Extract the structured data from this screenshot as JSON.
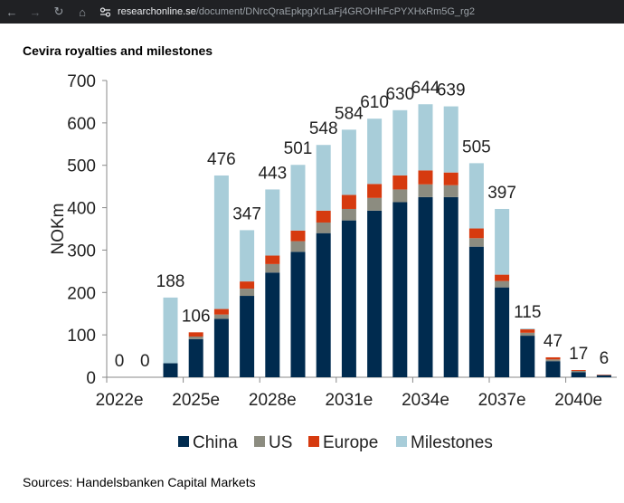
{
  "browser": {
    "url_domain": "researchonline.se",
    "url_path": "/document/DNrcQraEpkpgXrLaFj4GROHhFcPYXHxRm5G_rg2"
  },
  "page": {
    "title": "Cevira royalties and milestones",
    "source": "Sources: Handelsbanken Capital Markets"
  },
  "chart_data": {
    "type": "bar",
    "stacked": true,
    "ylabel": "NOKm",
    "ylim": [
      0,
      700
    ],
    "yticks": [
      0,
      100,
      200,
      300,
      400,
      500,
      600,
      700
    ],
    "categories": [
      "2022e",
      "2023e",
      "2024e",
      "2025e",
      "2026e",
      "2027e",
      "2028e",
      "2029e",
      "2030e",
      "2031e",
      "2032e",
      "2033e",
      "2034e",
      "2035e",
      "2036e",
      "2037e",
      "2038e",
      "2039e",
      "2040e",
      "2041e"
    ],
    "xtick_labels": [
      "2022e",
      "2025e",
      "2028e",
      "2031e",
      "2034e",
      "2037e",
      "2040e"
    ],
    "series": [
      {
        "name": "China",
        "color": "#002b4f",
        "values": [
          0,
          0,
          33,
          90,
          138,
          192,
          247,
          296,
          340,
          370,
          393,
          413,
          425,
          425,
          308,
          212,
          98,
          38,
          12,
          5
        ]
      },
      {
        "name": "US",
        "color": "#8c8c80",
        "values": [
          0,
          0,
          0,
          6,
          10,
          17,
          20,
          25,
          25,
          27,
          30,
          30,
          30,
          28,
          20,
          15,
          7,
          4,
          3,
          0
        ]
      },
      {
        "name": "Europe",
        "color": "#d63a0f",
        "values": [
          0,
          0,
          0,
          10,
          13,
          17,
          20,
          25,
          28,
          33,
          33,
          33,
          33,
          30,
          23,
          15,
          8,
          5,
          2,
          1
        ]
      },
      {
        "name": "Milestones",
        "color": "#a8cdd9",
        "values": [
          0,
          0,
          155,
          0,
          315,
          121,
          156,
          155,
          155,
          154,
          154,
          154,
          156,
          156,
          154,
          155,
          2,
          0,
          0,
          0
        ]
      }
    ],
    "totals": [
      "0",
      "0",
      "188",
      "106",
      "476",
      "347",
      "443",
      "501",
      "548",
      "584",
      "610",
      "630",
      "644",
      "639",
      "505",
      "397",
      "115",
      "47",
      "17",
      "6"
    ],
    "legend_position": "bottom",
    "grid": false
  }
}
